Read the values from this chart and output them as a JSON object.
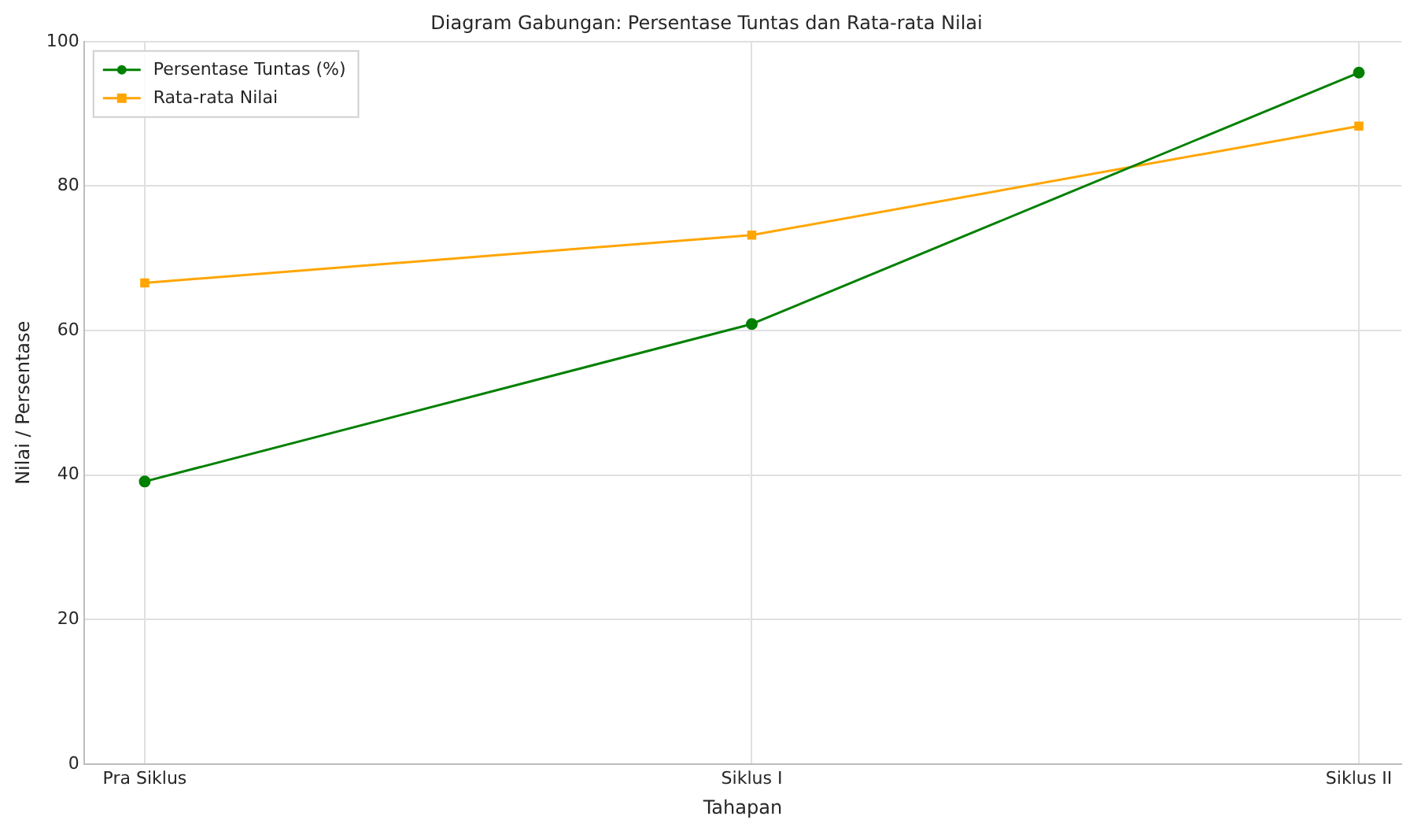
{
  "chart_data": {
    "type": "line",
    "title": "Diagram Gabungan: Persentase Tuntas dan Rata-rata Nilai",
    "xlabel": "Tahapan",
    "ylabel": "Nilai / Persentase",
    "categories": [
      "Pra Siklus",
      "Siklus I",
      "Siklus II"
    ],
    "series": [
      {
        "name": "Persentase Tuntas (%)",
        "color": "#008000",
        "marker": "circle",
        "values": [
          39.1,
          60.9,
          95.7
        ]
      },
      {
        "name": "Rata-rata Nilai",
        "color": "#ffa500",
        "marker": "square",
        "values": [
          66.6,
          73.2,
          88.3
        ]
      }
    ],
    "ylim": [
      0,
      100
    ],
    "yticks": [
      0,
      20,
      40,
      60,
      80,
      100
    ],
    "grid": true,
    "legend": "top left",
    "line_style": "solid"
  }
}
